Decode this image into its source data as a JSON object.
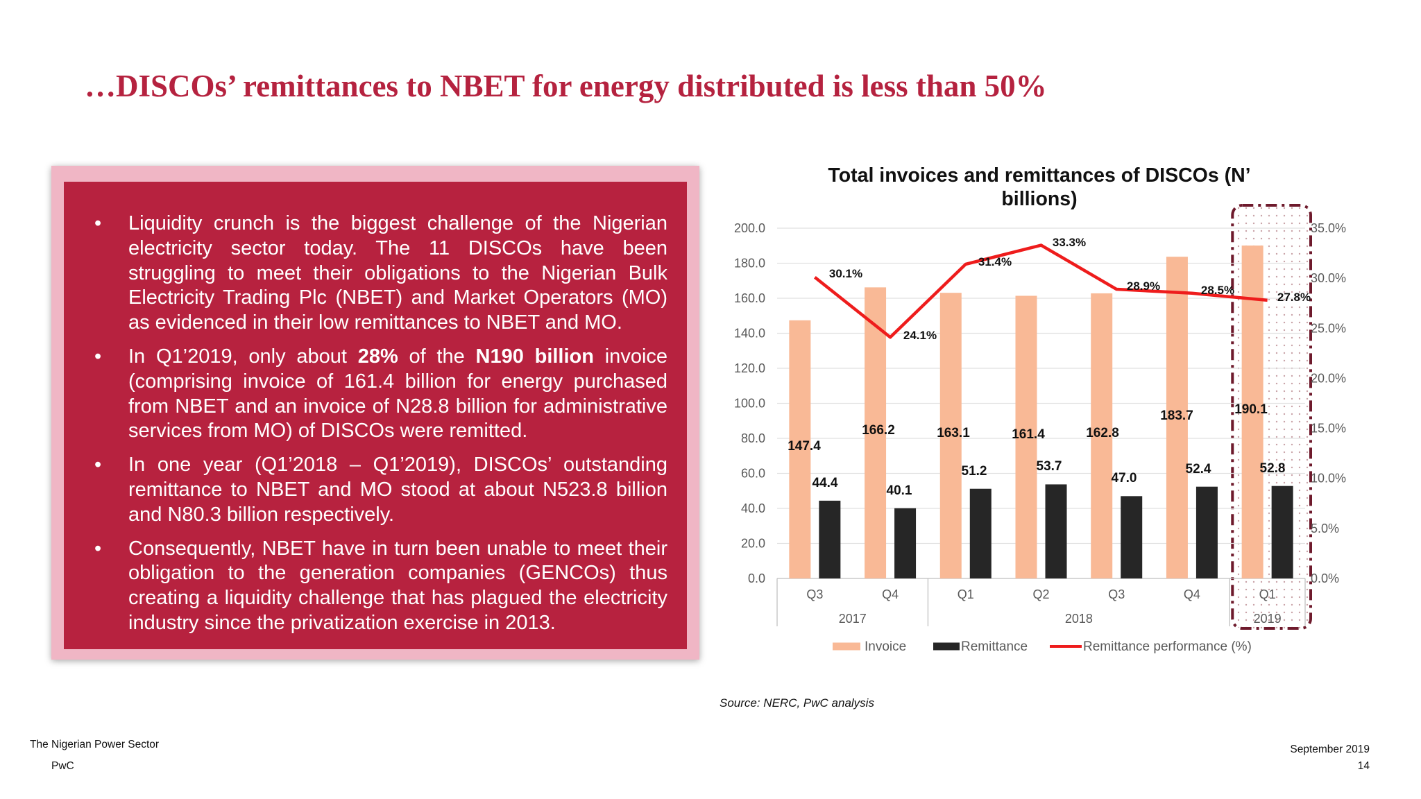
{
  "title": "…DISCOs’ remittances to NBET for energy distributed is less than 50%",
  "bullets": [
    {
      "parts": [
        {
          "text": "Liquidity crunch is the biggest challenge of the Nigerian electricity sector today. The 11 DISCOs have been struggling to meet their obligations to the Nigerian Bulk Electricity Trading Plc (NBET) and Market Operators (MO) as evidenced in their low remittances to NBET and MO.",
          "bold": false
        }
      ]
    },
    {
      "parts": [
        {
          "text": "In Q1’2019, only about ",
          "bold": false
        },
        {
          "text": "28%",
          "bold": true
        },
        {
          "text": " of the ",
          "bold": false
        },
        {
          "text": "N190 billion",
          "bold": true
        },
        {
          "text": " invoice (comprising invoice of 161.4 billion for energy purchased from NBET and an invoice of N28.8 billion for administrative services from MO) of DISCOs were remitted.",
          "bold": false
        }
      ]
    },
    {
      "parts": [
        {
          "text": "In one year (Q1’2018 – Q1’2019), DISCOs’ outstanding remittance to NBET and MO stood at about N523.8 billion and N80.3 billion respectively.",
          "bold": false
        }
      ]
    },
    {
      "parts": [
        {
          "text": "Consequently, NBET have in turn been unable to meet their obligation to the generation companies (GENCOs) thus creating a liquidity challenge that has plagued the electricity industry since the privatization exercise in 2013.",
          "bold": false
        }
      ]
    }
  ],
  "chart_data": {
    "type": "bar",
    "title_lines": [
      "Total invoices and remittances of DISCOs (N’",
      "billions)"
    ],
    "categories": [
      "Q3",
      "Q4",
      "Q1",
      "Q2",
      "Q3",
      "Q4",
      "Q1"
    ],
    "year_groups": [
      {
        "label": "2017",
        "count": 2
      },
      {
        "label": "2018",
        "count": 4
      },
      {
        "label": "2019",
        "count": 1
      }
    ],
    "series": [
      {
        "name": "Invoice",
        "kind": "bar",
        "axis": "left",
        "color": "#f9b996",
        "values": [
          147.4,
          166.2,
          163.1,
          161.4,
          162.8,
          183.7,
          190.1
        ],
        "labels": [
          "147.4",
          "166.2",
          "163.1",
          "161.4",
          "162.8",
          "183.7",
          "190.1"
        ]
      },
      {
        "name": "Remittance",
        "kind": "bar",
        "axis": "left",
        "color": "#262626",
        "values": [
          44.4,
          40.1,
          51.2,
          53.7,
          47.0,
          52.4,
          52.8
        ],
        "labels": [
          "44.4",
          "40.1",
          "51.2",
          "53.7",
          "47.0",
          "52.4",
          "52.8"
        ]
      },
      {
        "name": "Remittance performance (%)",
        "kind": "line",
        "axis": "right",
        "color": "#ee1c1c",
        "values": [
          30.1,
          24.1,
          31.4,
          33.3,
          28.9,
          28.5,
          27.8
        ],
        "labels": [
          "30.1%",
          "24.1%",
          "31.4%",
          "33.3%",
          "28.9%",
          "28.5%",
          "27.8%"
        ]
      }
    ],
    "y_left": {
      "min": 0,
      "max": 200,
      "step": 20,
      "ticks": [
        "0.0",
        "20.0",
        "40.0",
        "60.0",
        "80.0",
        "100.0",
        "120.0",
        "140.0",
        "160.0",
        "180.0",
        "200.0"
      ]
    },
    "y_right": {
      "min": 0,
      "max": 35,
      "step": 5,
      "ticks": [
        "0.0%",
        "5.0%",
        "10.0%",
        "15.0%",
        "20.0%",
        "25.0%",
        "30.0%",
        "35.0%"
      ]
    },
    "gridlines": true,
    "legend_position": "bottom",
    "highlighted_category_index": 6
  },
  "source": "Source: NERC, PwC analysis",
  "footer": {
    "report_name": "The Nigerian Power Sector",
    "company": "PwC",
    "date": "September 2019",
    "page_number": "14"
  }
}
